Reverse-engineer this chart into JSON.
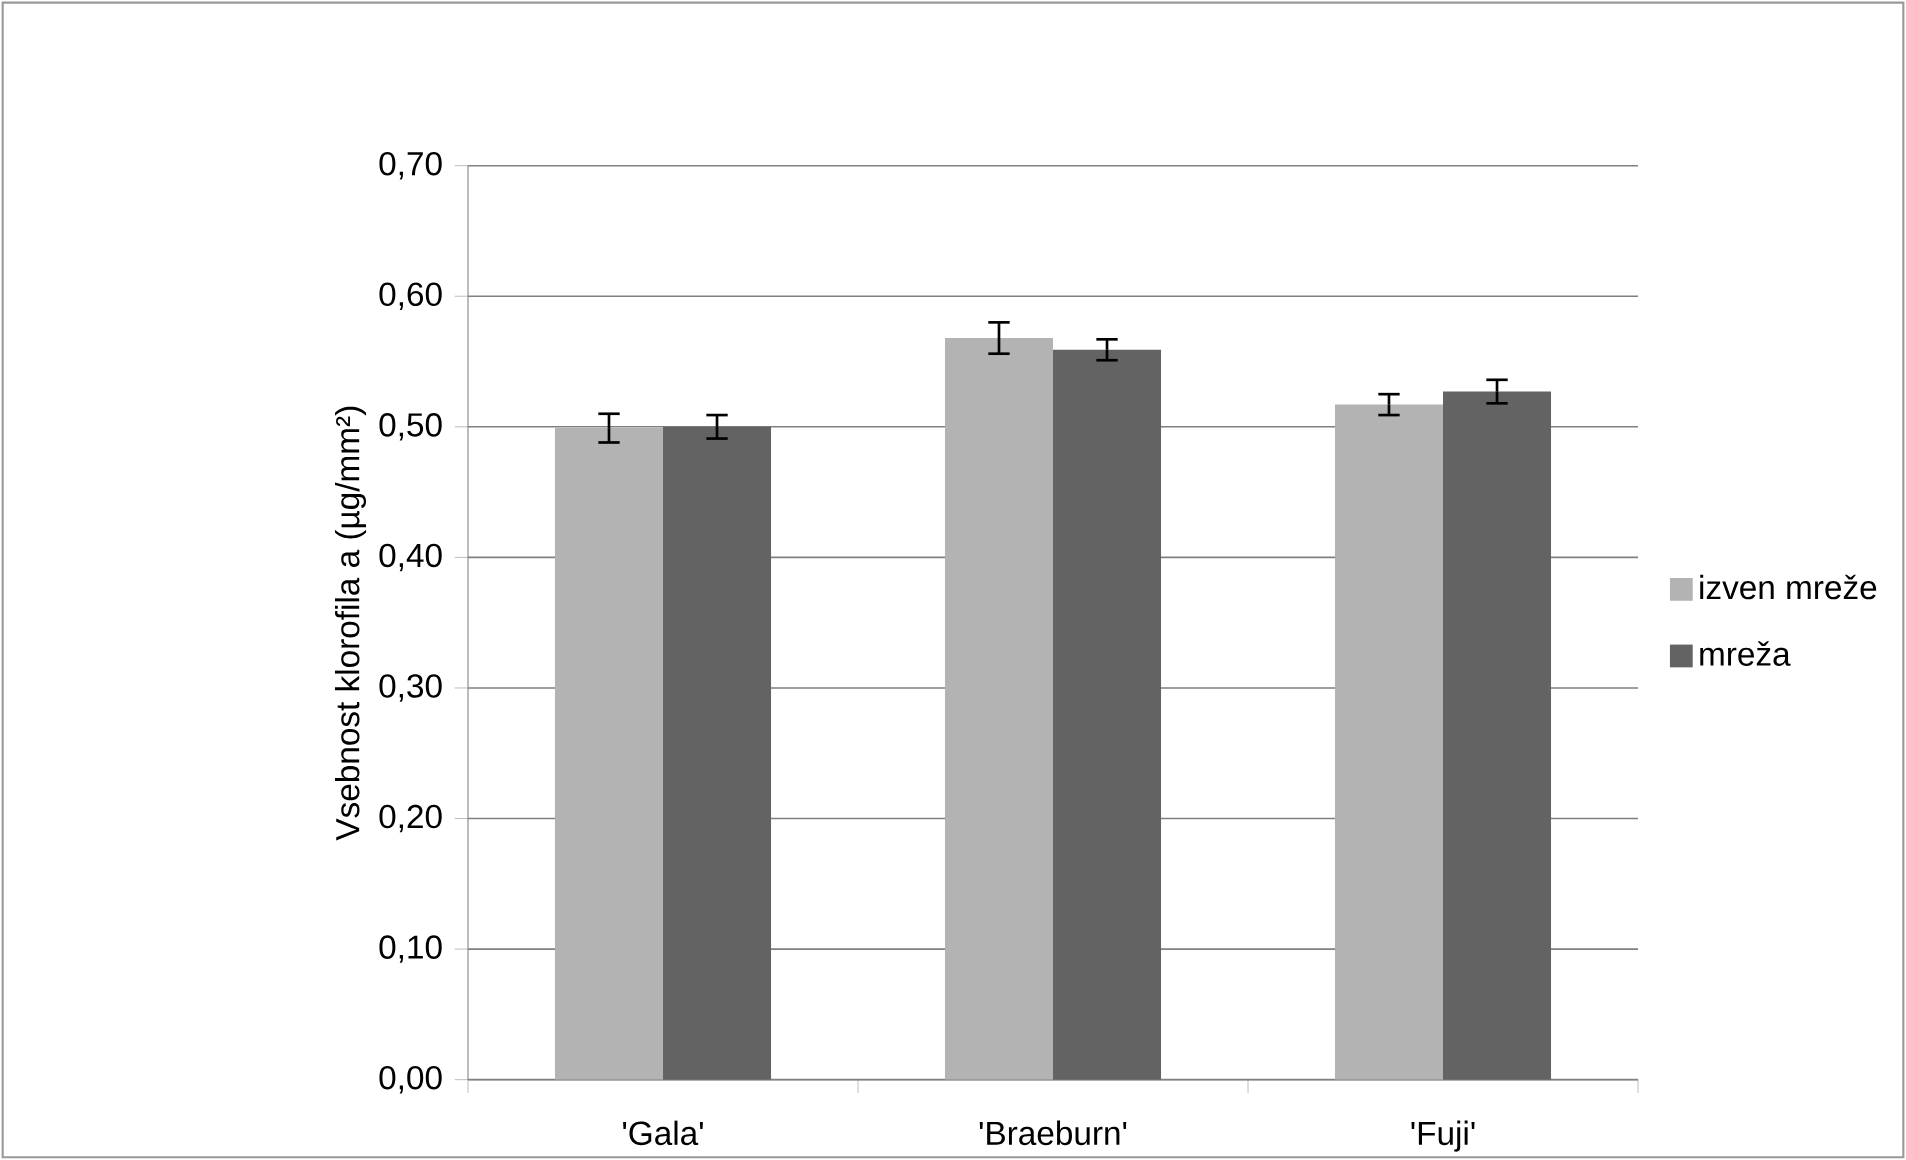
{
  "chart_data": {
    "type": "bar",
    "ylabel": "Vsebnost klorofila a (µg/mm²)",
    "categories": [
      "'Gala'",
      "'Braeburn'",
      "'Fuji'"
    ],
    "series": [
      {
        "name": "izven mreže",
        "color": "#b3b3b3",
        "values": [
          0.499,
          0.568,
          0.517
        ],
        "errors": [
          0.011,
          0.012,
          0.008
        ]
      },
      {
        "name": "mreža",
        "color": "#636363",
        "values": [
          0.5,
          0.559,
          0.527
        ],
        "errors": [
          0.009,
          0.008,
          0.009
        ]
      }
    ],
    "ylim": [
      0,
      0.7
    ],
    "yticks": [
      {
        "value": 0,
        "label": "0,00"
      },
      {
        "value": 0.1,
        "label": "0,10"
      },
      {
        "value": 0.2,
        "label": "0,20"
      },
      {
        "value": 0.3,
        "label": "0,30"
      },
      {
        "value": 0.4,
        "label": "0,40"
      },
      {
        "value": 0.5,
        "label": "0,50"
      },
      {
        "value": 0.6,
        "label": "0,60"
      },
      {
        "value": 0.7,
        "label": "0,70"
      }
    ],
    "grid": "y",
    "legend": "right"
  }
}
